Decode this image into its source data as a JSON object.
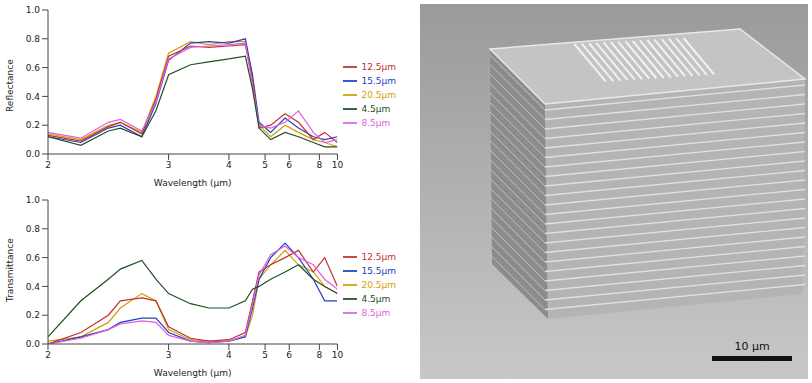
{
  "chart_data": [
    {
      "type": "line",
      "xlabel": "Wavelength (μm)",
      "ylabel": "Reflectance",
      "xlim": [
        2,
        10
      ],
      "xticks": [
        2,
        3,
        4,
        5,
        6,
        8,
        10
      ],
      "ylim": [
        0,
        1
      ],
      "yticks": [
        {
          "value": 0,
          "label": "0.0"
        },
        0.2,
        0.4,
        0.6,
        0.8,
        {
          "value": 1,
          "label": "1.0"
        }
      ],
      "legend": "right",
      "x": [
        2.0,
        2.2,
        2.4,
        2.5,
        2.7,
        2.85,
        3.0,
        3.3,
        3.6,
        4.0,
        4.4,
        4.6,
        4.8,
        5.2,
        5.8,
        6.5,
        7.5,
        8.5,
        10
      ],
      "series": [
        {
          "name": "20.5μm",
          "color": "#d4a000",
          "values": [
            0.14,
            0.1,
            0.2,
            0.22,
            0.15,
            0.4,
            0.7,
            0.78,
            0.76,
            0.78,
            0.78,
            0.5,
            0.2,
            0.12,
            0.2,
            0.15,
            0.1,
            0.08,
            0.05
          ]
        },
        {
          "name": "15.5μm",
          "color": "#2040c0",
          "values": [
            0.12,
            0.08,
            0.18,
            0.2,
            0.12,
            0.35,
            0.65,
            0.77,
            0.78,
            0.77,
            0.8,
            0.55,
            0.22,
            0.15,
            0.25,
            0.18,
            0.12,
            0.1,
            0.12
          ]
        },
        {
          "name": "12.5μm",
          "color": "#c03030",
          "values": [
            0.13,
            0.09,
            0.19,
            0.22,
            0.14,
            0.38,
            0.68,
            0.75,
            0.74,
            0.75,
            0.76,
            0.52,
            0.18,
            0.2,
            0.28,
            0.22,
            0.1,
            0.15,
            0.08
          ]
        },
        {
          "name": "8.5μm",
          "color": "#e060e0",
          "values": [
            0.15,
            0.11,
            0.22,
            0.24,
            0.16,
            0.36,
            0.66,
            0.74,
            0.75,
            0.76,
            0.77,
            0.48,
            0.2,
            0.18,
            0.22,
            0.3,
            0.15,
            0.08,
            0.1
          ]
        },
        {
          "name": "4.5μm",
          "color": "#205020",
          "values": [
            0.12,
            0.06,
            0.16,
            0.18,
            0.12,
            0.3,
            0.55,
            0.62,
            0.64,
            0.66,
            0.68,
            0.45,
            0.18,
            0.1,
            0.15,
            0.12,
            0.08,
            0.05,
            0.05
          ]
        }
      ]
    },
    {
      "type": "line",
      "xlabel": "Wavelength (μm)",
      "ylabel": "Transmittance",
      "xlim": [
        2,
        10
      ],
      "xticks": [
        2,
        3,
        4,
        5,
        6,
        8,
        10
      ],
      "ylim": [
        0,
        1
      ],
      "yticks": [
        {
          "value": 0,
          "label": "0.0"
        },
        0.2,
        0.4,
        0.6,
        0.8,
        {
          "value": 1,
          "label": "1.0"
        }
      ],
      "legend": "right",
      "x": [
        2.0,
        2.2,
        2.4,
        2.5,
        2.7,
        2.85,
        3.0,
        3.3,
        3.6,
        4.0,
        4.4,
        4.6,
        4.8,
        5.2,
        5.8,
        6.5,
        7.5,
        8.5,
        10
      ],
      "series": [
        {
          "name": "20.5μm",
          "color": "#d4a000",
          "values": [
            0.02,
            0.05,
            0.15,
            0.25,
            0.35,
            0.3,
            0.1,
            0.03,
            0.02,
            0.02,
            0.05,
            0.2,
            0.45,
            0.55,
            0.65,
            0.55,
            0.5,
            0.4,
            0.35
          ]
        },
        {
          "name": "15.5μm",
          "color": "#2040c0",
          "values": [
            0.0,
            0.05,
            0.1,
            0.15,
            0.18,
            0.18,
            0.08,
            0.02,
            0.01,
            0.02,
            0.05,
            0.25,
            0.45,
            0.6,
            0.7,
            0.6,
            0.45,
            0.3,
            0.3
          ]
        },
        {
          "name": "12.5μm",
          "color": "#c03030",
          "values": [
            0.0,
            0.08,
            0.2,
            0.3,
            0.32,
            0.3,
            0.12,
            0.04,
            0.02,
            0.03,
            0.08,
            0.3,
            0.5,
            0.55,
            0.6,
            0.65,
            0.5,
            0.6,
            0.4
          ]
        },
        {
          "name": "8.5μm",
          "color": "#e060e0",
          "values": [
            0.0,
            0.04,
            0.1,
            0.14,
            0.16,
            0.15,
            0.06,
            0.02,
            0.01,
            0.02,
            0.06,
            0.28,
            0.48,
            0.62,
            0.68,
            0.6,
            0.55,
            0.45,
            0.38
          ]
        },
        {
          "name": "4.5μm",
          "color": "#205020",
          "values": [
            0.05,
            0.3,
            0.45,
            0.52,
            0.58,
            0.45,
            0.35,
            0.28,
            0.25,
            0.25,
            0.3,
            0.38,
            0.4,
            0.45,
            0.5,
            0.55,
            0.45,
            0.4,
            0.35
          ]
        }
      ]
    }
  ],
  "image": {
    "scale_bar": "10 μm"
  }
}
